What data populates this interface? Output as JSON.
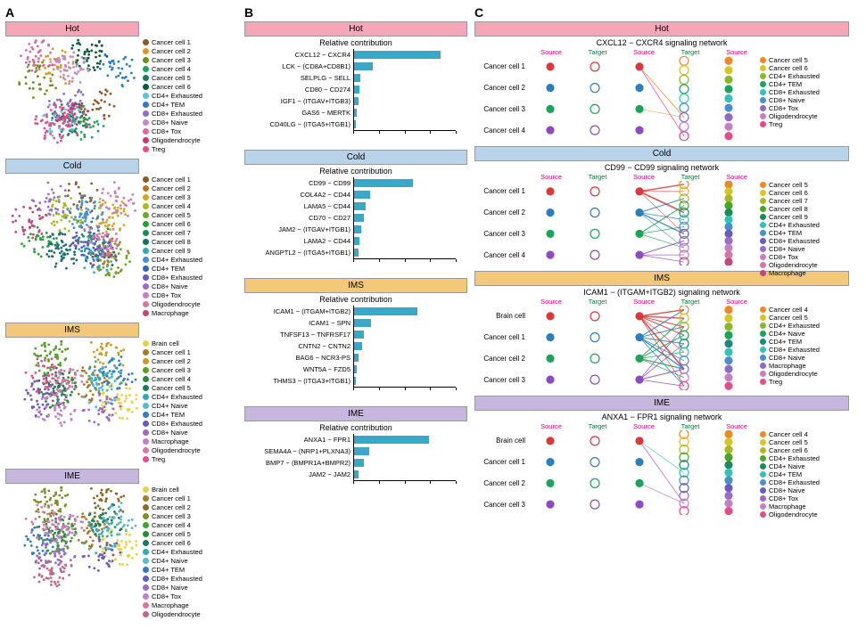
{
  "panel_labels": {
    "A": "A",
    "B": "B",
    "C": "C"
  },
  "groups": {
    "hot": {
      "label": "Hot",
      "header_bg": "#f4a7b9"
    },
    "cold": {
      "label": "Cold",
      "header_bg": "#b9d3ea"
    },
    "ims": {
      "label": "IMS",
      "header_bg": "#f4c87a"
    },
    "ime": {
      "label": "IME",
      "header_bg": "#c7b6dd"
    }
  },
  "colors": {
    "bar_fill": "#3aa7c4",
    "circle_stroke_width": 1.2,
    "node_radius": 4,
    "open_radius": 5
  },
  "panelA": {
    "hot": {
      "cells": [
        {
          "name": "Cancer cell 1",
          "c": "#8c5a2b"
        },
        {
          "name": "Cancer cell 2",
          "c": "#d99a2b"
        },
        {
          "name": "Cancer cell 3",
          "c": "#6b8e23"
        },
        {
          "name": "Cancer cell 4",
          "c": "#1fa35a"
        },
        {
          "name": "Cancer cell 5",
          "c": "#1b7a5a"
        },
        {
          "name": "Cancer cell 6",
          "c": "#0e5c3c"
        },
        {
          "name": "CD4+ Exhausted",
          "c": "#63c1d6"
        },
        {
          "name": "CD4+ TEM",
          "c": "#2e7ebc"
        },
        {
          "name": "CD8+ Exhausted",
          "c": "#8d6cc1"
        },
        {
          "name": "CD8+ Naive",
          "c": "#c18bc3"
        },
        {
          "name": "CD8+ Tox",
          "c": "#d86aa1"
        },
        {
          "name": "Oligodendrocyte",
          "c": "#c43a6f"
        },
        {
          "name": "Treg",
          "c": "#e04f8a"
        }
      ]
    },
    "cold": {
      "cells": [
        {
          "name": "Cancer cell 1",
          "c": "#8c5a2b"
        },
        {
          "name": "Cancer cell 2",
          "c": "#b07a2b"
        },
        {
          "name": "Cancer cell 3",
          "c": "#d4a32b"
        },
        {
          "name": "Cancer cell 4",
          "c": "#a8b82b"
        },
        {
          "name": "Cancer cell 5",
          "c": "#6fa52b"
        },
        {
          "name": "Cancer cell 6",
          "c": "#2e9e3b"
        },
        {
          "name": "Cancer cell 7",
          "c": "#1e8a5a"
        },
        {
          "name": "Cancer cell 8",
          "c": "#1b6e6e"
        },
        {
          "name": "Cancer cell 9",
          "c": "#35a8b8"
        },
        {
          "name": "CD4+ Exhausted",
          "c": "#4a8fc9"
        },
        {
          "name": "CD4+ TEM",
          "c": "#3a63b8"
        },
        {
          "name": "CD8+ Exhausted",
          "c": "#6a5cb8"
        },
        {
          "name": "CD8+ Naive",
          "c": "#9a6cc4"
        },
        {
          "name": "CD8+ Tox",
          "c": "#c57fc4"
        },
        {
          "name": "Oligodendrocyte",
          "c": "#d37aa3"
        },
        {
          "name": "Macrophage",
          "c": "#bc4a7a"
        }
      ]
    },
    "ims": {
      "cells": [
        {
          "name": "Brain cell",
          "c": "#e7d14a"
        },
        {
          "name": "Cancer cell 1",
          "c": "#a87a2b"
        },
        {
          "name": "Cancer cell 2",
          "c": "#c99a2b"
        },
        {
          "name": "Cancer cell 3",
          "c": "#5a9e2b"
        },
        {
          "name": "Cancer cell 4",
          "c": "#2e8a3b"
        },
        {
          "name": "Cancer cell 5",
          "c": "#1e7a5a"
        },
        {
          "name": "CD4+ Exhausted",
          "c": "#35a8b8"
        },
        {
          "name": "CD4+ Naive",
          "c": "#5ab8c9"
        },
        {
          "name": "CD4+ TEM",
          "c": "#3a7ab8"
        },
        {
          "name": "CD8+ Exhausted",
          "c": "#6a5cb8"
        },
        {
          "name": "CD8+ Naive",
          "c": "#9a6cc4"
        },
        {
          "name": "Macrophage",
          "c": "#c57fc4"
        },
        {
          "name": "Oligodendrocyte",
          "c": "#d37aa3"
        },
        {
          "name": "Treg",
          "c": "#e04f8a"
        }
      ]
    },
    "ime": {
      "cells": [
        {
          "name": "Brain cell",
          "c": "#e7d14a"
        },
        {
          "name": "Cancer cell 1",
          "c": "#a87a2b"
        },
        {
          "name": "Cancer cell 2",
          "c": "#8a6a2b"
        },
        {
          "name": "Cancer cell 3",
          "c": "#7a8e2b"
        },
        {
          "name": "Cancer cell 4",
          "c": "#4a9e2b"
        },
        {
          "name": "Cancer cell 5",
          "c": "#2e8a3b"
        },
        {
          "name": "Cancer cell 6",
          "c": "#1e7a5a"
        },
        {
          "name": "CD4+ Exhausted",
          "c": "#35a8b8"
        },
        {
          "name": "CD4+ Naive",
          "c": "#5ab8c9"
        },
        {
          "name": "CD4+ TEM",
          "c": "#3a7ab8"
        },
        {
          "name": "CD8+ Exhausted",
          "c": "#6a5cb8"
        },
        {
          "name": "CD8+ Naive",
          "c": "#9a6cc4"
        },
        {
          "name": "CD8+ Tox",
          "c": "#c57fc4"
        },
        {
          "name": "Macrophage",
          "c": "#d37aa3"
        },
        {
          "name": "Oligodendrocyte",
          "c": "#bc6a8a"
        }
      ]
    }
  },
  "panelB": {
    "title": "Relative contribution",
    "xmax": 1.0,
    "hot": [
      {
        "label": "CXCL12 − CXCR4",
        "v": 0.85
      },
      {
        "label": "LCK − (CD8A+CD8B1)",
        "v": 0.18
      },
      {
        "label": "SELPLG − SELL",
        "v": 0.06
      },
      {
        "label": "CD80 − CD274",
        "v": 0.05
      },
      {
        "label": "IGF1 − (ITGAV+ITGB3)",
        "v": 0.04
      },
      {
        "label": "GAS6 − MERTK",
        "v": 0.03
      },
      {
        "label": "CD40LG − (ITGA5+ITGB1)",
        "v": 0.02
      }
    ],
    "cold": [
      {
        "label": "CD99 − CD99",
        "v": 0.58
      },
      {
        "label": "COL4A2 − CD44",
        "v": 0.16
      },
      {
        "label": "LAMA5 − CD44",
        "v": 0.11
      },
      {
        "label": "CD70 − CD27",
        "v": 0.1
      },
      {
        "label": "JAM2 − (ITGAV+ITGB1)",
        "v": 0.07
      },
      {
        "label": "LAMA2 − CD44",
        "v": 0.05
      },
      {
        "label": "ANGPTL2 − (ITGA5+ITGB1)",
        "v": 0.04
      }
    ],
    "ims": [
      {
        "label": "ICAM1 − (ITGAM+ITGB2)",
        "v": 0.62
      },
      {
        "label": "ICAM1 − SPN",
        "v": 0.17
      },
      {
        "label": "TNFSF13 − TNFRSF17",
        "v": 0.1
      },
      {
        "label": "CNTN2 − CNTN2",
        "v": 0.08
      },
      {
        "label": "BAG6 − NCR3-PS",
        "v": 0.04
      },
      {
        "label": "WNT5A − FZD5",
        "v": 0.03
      },
      {
        "label": "THMS3 − (ITGA3+ITGB1)",
        "v": 0.02
      }
    ],
    "ime": [
      {
        "label": "ANXA1 − FPR1",
        "v": 0.74
      },
      {
        "label": "SEMA4A − (NRP1+PLXNA3)",
        "v": 0.15
      },
      {
        "label": "BMP7 − (BMPR1A+BMPR2)",
        "v": 0.1
      },
      {
        "label": "JAM2 − JAM2",
        "v": 0.04
      }
    ]
  },
  "panelC": {
    "col_headers": [
      "Source",
      "Target",
      "Source",
      "Target",
      "Source"
    ],
    "hot": {
      "title": "CXCL12 − CXCR4 signaling network",
      "left": [
        "Cancer cell 1",
        "Cancer cell 2",
        "Cancer cell 3",
        "Cancer cell 4"
      ],
      "left_colors": [
        "#d73a3a",
        "#2e7ebc",
        "#1fa35a",
        "#8d4ac1"
      ],
      "right": [
        {
          "name": "Cancer cell 5",
          "c": "#e98a2b"
        },
        {
          "name": "Cancer cell 6",
          "c": "#d4c52b"
        },
        {
          "name": "CD4+ Exhausted",
          "c": "#8ab82b"
        },
        {
          "name": "CD4+ TEM",
          "c": "#1fa35a"
        },
        {
          "name": "CD8+ Exhausted",
          "c": "#35c1b8"
        },
        {
          "name": "CD8+ Naive",
          "c": "#4a8fc9"
        },
        {
          "name": "CD8+ Tox",
          "c": "#8d6cc1"
        },
        {
          "name": "Oligodendrocyte",
          "c": "#c57fc4"
        },
        {
          "name": "Treg",
          "c": "#e04f8a"
        }
      ],
      "edges": [
        {
          "s": 0,
          "t": 6,
          "c": "#e98a2b",
          "w": 0.6
        },
        {
          "s": 0,
          "t": 8,
          "c": "#e04f8a",
          "w": 0.6
        },
        {
          "s": 2,
          "t": 6,
          "c": "#e98a2b",
          "w": 0.4
        }
      ]
    },
    "cold": {
      "title": "CD99 − CD99 signaling network",
      "left": [
        "Cancer cell 1",
        "Cancer cell 2",
        "Cancer cell 3",
        "Cancer cell 4"
      ],
      "left_colors": [
        "#d73a3a",
        "#2e7ebc",
        "#1fa35a",
        "#8d4ac1"
      ],
      "right": [
        {
          "name": "Cancer cell 5",
          "c": "#e98a2b"
        },
        {
          "name": "Cancer cell 6",
          "c": "#d4c52b"
        },
        {
          "name": "Cancer cell 7",
          "c": "#a8b82b"
        },
        {
          "name": "Cancer cell 8",
          "c": "#4aa52b"
        },
        {
          "name": "Cancer cell 9",
          "c": "#1e8a5a"
        },
        {
          "name": "CD4+ Exhausted",
          "c": "#35c1b8"
        },
        {
          "name": "CD4+ TEM",
          "c": "#4a8fc9"
        },
        {
          "name": "CD8+ Exhausted",
          "c": "#6a5cb8"
        },
        {
          "name": "CD8+ Naive",
          "c": "#9a6cc4"
        },
        {
          "name": "CD8+ Tox",
          "c": "#c57fc4"
        },
        {
          "name": "Oligodendrocyte",
          "c": "#d37aa3"
        },
        {
          "name": "Macrophage",
          "c": "#bc4a7a"
        }
      ],
      "edges": [
        {
          "s": 0,
          "t": 0,
          "c": "#d73a3a",
          "w": 1.0
        },
        {
          "s": 0,
          "t": 1,
          "c": "#d73a3a",
          "w": 0.6
        },
        {
          "s": 0,
          "t": 4,
          "c": "#d73a3a",
          "w": 1.2
        },
        {
          "s": 1,
          "t": 2,
          "c": "#2e7ebc",
          "w": 0.8
        },
        {
          "s": 1,
          "t": 5,
          "c": "#2e7ebc",
          "w": 0.6
        },
        {
          "s": 1,
          "t": 7,
          "c": "#2e7ebc",
          "w": 1.0
        },
        {
          "s": 2,
          "t": 3,
          "c": "#1fa35a",
          "w": 0.8
        },
        {
          "s": 2,
          "t": 6,
          "c": "#1fa35a",
          "w": 0.6
        },
        {
          "s": 2,
          "t": 9,
          "c": "#1fa35a",
          "w": 0.5
        },
        {
          "s": 3,
          "t": 8,
          "c": "#8d4ac1",
          "w": 0.8
        },
        {
          "s": 3,
          "t": 10,
          "c": "#8d4ac1",
          "w": 0.6
        },
        {
          "s": 3,
          "t": 11,
          "c": "#8d4ac1",
          "w": 0.5
        },
        {
          "s": 0,
          "t": 7,
          "c": "#d73a3a",
          "w": 0.4
        },
        {
          "s": 1,
          "t": 9,
          "c": "#2e7ebc",
          "w": 0.4
        }
      ]
    },
    "ims": {
      "title": "ICAM1 − (ITGAM+ITGB2) signaling network",
      "left": [
        "Brain cell",
        "Cancer cell 1",
        "Cancer cell 2",
        "Cancer cell 3"
      ],
      "left_colors": [
        "#d73a3a",
        "#2e7ebc",
        "#1fa35a",
        "#8d4ac1"
      ],
      "right": [
        {
          "name": "Cancer cell 4",
          "c": "#e98a2b"
        },
        {
          "name": "Cancer cell 5",
          "c": "#d4c52b"
        },
        {
          "name": "CD4+ Exhausted",
          "c": "#8ab82b"
        },
        {
          "name": "CD4+ Naive",
          "c": "#1fa35a"
        },
        {
          "name": "CD4+ TEM",
          "c": "#1b8a7a"
        },
        {
          "name": "CD8+ Exhausted",
          "c": "#35c1b8"
        },
        {
          "name": "CD8+ Naive",
          "c": "#4a8fc9"
        },
        {
          "name": "Macrophage",
          "c": "#8d6cc1"
        },
        {
          "name": "Oligodendrocyte",
          "c": "#c57fc4"
        },
        {
          "name": "Treg",
          "c": "#e04f8a"
        }
      ],
      "edges": [
        {
          "s": 0,
          "t": 0,
          "c": "#d73a3a",
          "w": 1.0
        },
        {
          "s": 0,
          "t": 1,
          "c": "#d73a3a",
          "w": 1.0
        },
        {
          "s": 0,
          "t": 2,
          "c": "#d73a3a",
          "w": 0.8
        },
        {
          "s": 0,
          "t": 3,
          "c": "#d73a3a",
          "w": 0.8
        },
        {
          "s": 0,
          "t": 7,
          "c": "#d73a3a",
          "w": 1.2
        },
        {
          "s": 1,
          "t": 0,
          "c": "#2e7ebc",
          "w": 0.8
        },
        {
          "s": 1,
          "t": 2,
          "c": "#2e7ebc",
          "w": 0.8
        },
        {
          "s": 1,
          "t": 4,
          "c": "#2e7ebc",
          "w": 0.8
        },
        {
          "s": 1,
          "t": 6,
          "c": "#2e7ebc",
          "w": 0.6
        },
        {
          "s": 1,
          "t": 7,
          "c": "#2e7ebc",
          "w": 1.0
        },
        {
          "s": 1,
          "t": 9,
          "c": "#2e7ebc",
          "w": 0.6
        },
        {
          "s": 2,
          "t": 1,
          "c": "#1fa35a",
          "w": 0.8
        },
        {
          "s": 2,
          "t": 3,
          "c": "#1fa35a",
          "w": 0.8
        },
        {
          "s": 2,
          "t": 5,
          "c": "#1fa35a",
          "w": 0.6
        },
        {
          "s": 2,
          "t": 7,
          "c": "#1fa35a",
          "w": 1.0
        },
        {
          "s": 2,
          "t": 8,
          "c": "#1fa35a",
          "w": 0.6
        },
        {
          "s": 3,
          "t": 2,
          "c": "#8d4ac1",
          "w": 0.6
        },
        {
          "s": 3,
          "t": 4,
          "c": "#8d4ac1",
          "w": 0.6
        },
        {
          "s": 3,
          "t": 7,
          "c": "#8d4ac1",
          "w": 0.8
        },
        {
          "s": 3,
          "t": 9,
          "c": "#8d4ac1",
          "w": 0.6
        },
        {
          "s": 0,
          "t": 5,
          "c": "#d73a3a",
          "w": 0.5
        },
        {
          "s": 0,
          "t": 9,
          "c": "#d73a3a",
          "w": 0.5
        }
      ]
    },
    "ime": {
      "title": "ANXA1 − FPR1 signaling network",
      "left": [
        "Brain cell",
        "Cancer cell 1",
        "Cancer cell 2",
        "Cancer cell 3"
      ],
      "left_colors": [
        "#d73a3a",
        "#2e7ebc",
        "#1fa35a",
        "#8d4ac1"
      ],
      "right": [
        {
          "name": "Cancer cell 4",
          "c": "#e98a2b"
        },
        {
          "name": "Cancer cell 5",
          "c": "#d4c52b"
        },
        {
          "name": "Cancer cell 6",
          "c": "#a8b82b"
        },
        {
          "name": "CD4+ Exhausted",
          "c": "#4aa52b"
        },
        {
          "name": "CD4+ Naive",
          "c": "#1e8a5a"
        },
        {
          "name": "CD4+ TEM",
          "c": "#35c1b8"
        },
        {
          "name": "CD8+ Exhausted",
          "c": "#4a8fc9"
        },
        {
          "name": "CD8+ Naive",
          "c": "#6a5cb8"
        },
        {
          "name": "CD8+ Tox",
          "c": "#9a6cc4"
        },
        {
          "name": "Macrophage",
          "c": "#c57fc4"
        },
        {
          "name": "Oligodendrocyte",
          "c": "#e04f8a"
        }
      ],
      "edges": [
        {
          "s": 0,
          "t": 9,
          "c": "#c57fc4",
          "w": 0.8
        },
        {
          "s": 2,
          "t": 9,
          "c": "#c57fc4",
          "w": 0.6
        },
        {
          "s": 0,
          "t": 5,
          "c": "#35c1b8",
          "w": 0.5
        }
      ]
    }
  }
}
